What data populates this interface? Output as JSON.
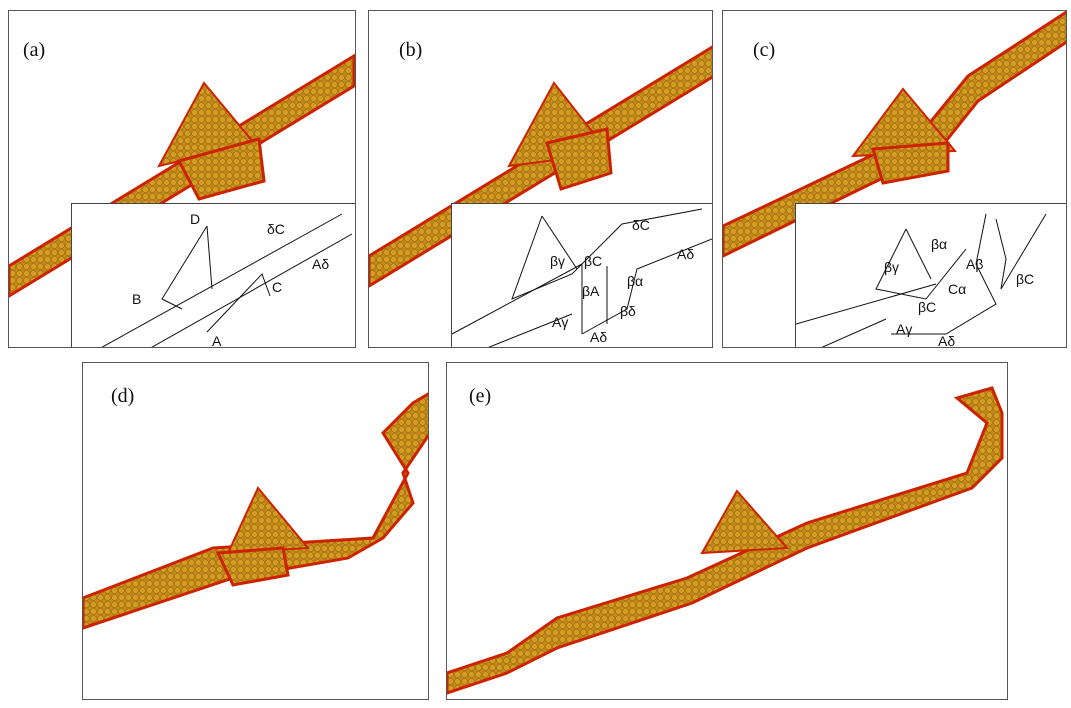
{
  "figure": {
    "colors": {
      "atom_core": "#b8860b",
      "atom_edge": "#cc2200",
      "atom_highlight": "#2ecc40",
      "bg": "#ffffff"
    },
    "panels": [
      {
        "label": "(a)",
        "inset_labels": [
          "D",
          "B",
          "C",
          "A",
          "δC",
          "Aδ"
        ]
      },
      {
        "label": "(b)",
        "inset_labels": [
          "δC",
          "Aδ",
          "βγ",
          "βC",
          "βα",
          "βA",
          "βδ",
          "Aγ",
          "Aδ"
        ]
      },
      {
        "label": "(c)",
        "inset_labels": [
          "βα",
          "Aβ",
          "βγ",
          "Cα",
          "βC",
          "βC",
          "Aγ",
          "Aδ"
        ]
      },
      {
        "label": "(d)"
      },
      {
        "label": "(e)"
      }
    ]
  }
}
